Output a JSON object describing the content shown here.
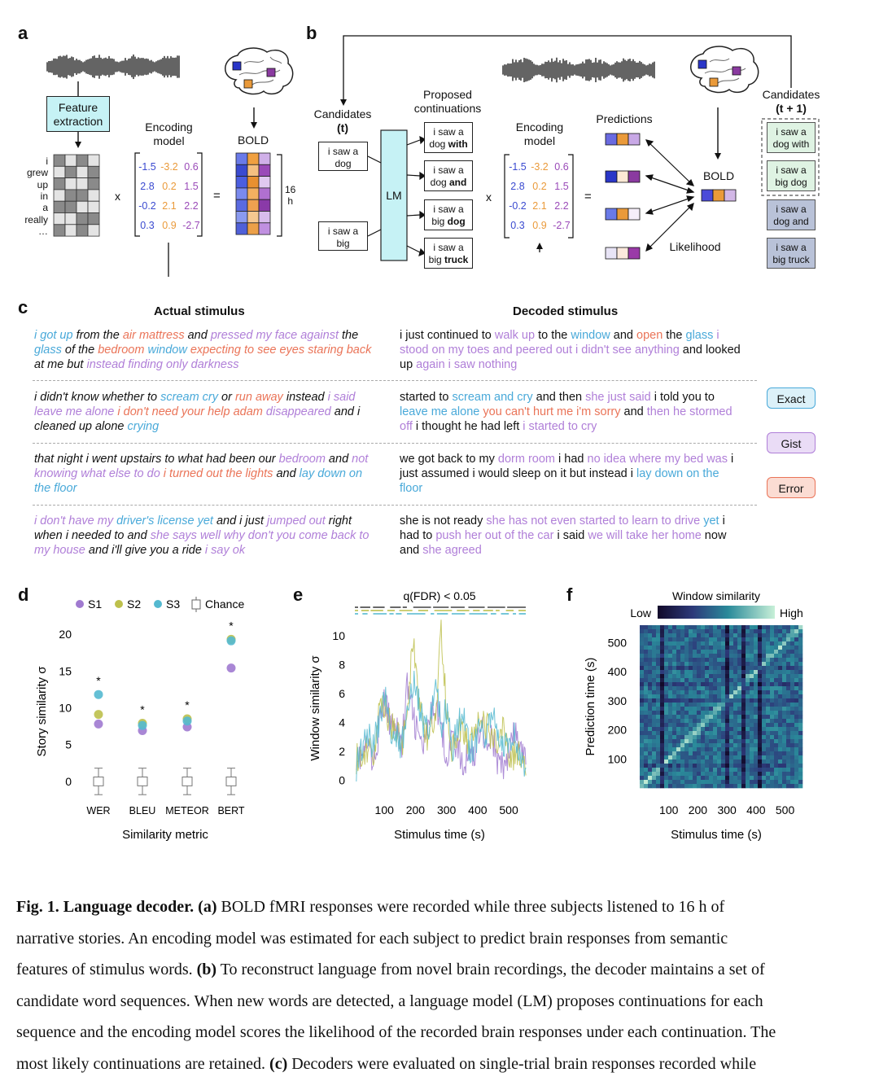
{
  "panel_labels": {
    "a": "a",
    "b": "b",
    "c": "c",
    "d": "d",
    "e": "e",
    "f": "f"
  },
  "panel_a": {
    "feature_extraction": [
      "Feature",
      "extraction"
    ],
    "encoding_model": [
      "Encoding",
      "model"
    ],
    "bold": "BOLD",
    "words": [
      "i",
      "grew",
      "up",
      "in",
      "a",
      "really",
      "…"
    ],
    "matrix": [
      [
        "-1.5",
        "-3.2",
        "0.6"
      ],
      [
        "2.8",
        "0.2",
        "1.5"
      ],
      [
        "-0.2",
        "2.1",
        "2.2"
      ],
      [
        "0.3",
        "0.9",
        "-2.7"
      ]
    ],
    "times": "x",
    "equals": "=",
    "duration": [
      "16",
      "h"
    ]
  },
  "panel_b": {
    "candidates_t": [
      "Candidates",
      "(t)"
    ],
    "candidate_boxes": [
      [
        "i saw a",
        "dog"
      ],
      [
        "i saw a",
        "big"
      ]
    ],
    "lm": "LM",
    "proposed": [
      "Proposed",
      "continuations"
    ],
    "continuations": [
      {
        "line1": "i saw a",
        "plain": "dog ",
        "bold": "with"
      },
      {
        "line1": "i saw a",
        "plain": "dog ",
        "bold": "and"
      },
      {
        "line1": "i saw a",
        "plain": "big ",
        "bold": "dog"
      },
      {
        "line1": "i saw a",
        "plain": "big ",
        "bold": "truck"
      }
    ],
    "encoding_model": [
      "Encoding",
      "model"
    ],
    "predictions": "Predictions",
    "bold": "BOLD",
    "likelihood": "Likelihood",
    "candidates_t1": [
      "Candidates",
      "(t + 1)"
    ],
    "next_candidates": [
      [
        "i saw a",
        "dog with"
      ],
      [
        "i saw a",
        "big dog"
      ],
      [
        "i saw a",
        "dog and"
      ],
      [
        "i saw a",
        "big truck"
      ]
    ]
  },
  "panel_c": {
    "actual_header": "Actual stimulus",
    "decoded_header": "Decoded stimulus",
    "legend": [
      "Exact",
      "Gist",
      "Error"
    ],
    "colors": {
      "exact": "#49a9d9",
      "gist": "#b07fd8",
      "error": "#ea7458"
    },
    "rows": [
      {
        "actual": [
          [
            "x",
            "i got up"
          ],
          [
            "n",
            " from the "
          ],
          [
            "e",
            "air mattress"
          ],
          [
            "n",
            " and "
          ],
          [
            "g",
            "pressed my face against"
          ],
          [
            "n",
            " the "
          ],
          [
            "x",
            "glass"
          ],
          [
            "n",
            " of the "
          ],
          [
            "e",
            "bedroom"
          ],
          [
            "n",
            " "
          ],
          [
            "x",
            "window"
          ],
          [
            "n",
            " "
          ],
          [
            "e",
            "expecting to see eyes staring back"
          ],
          [
            "n",
            " at me but "
          ],
          [
            "g",
            "instead finding only darkness"
          ]
        ],
        "decoded": [
          [
            "n",
            "i just continued to "
          ],
          [
            "g",
            "walk up"
          ],
          [
            "n",
            " to the "
          ],
          [
            "x",
            "window"
          ],
          [
            "n",
            " and "
          ],
          [
            "e",
            "open"
          ],
          [
            "n",
            " the "
          ],
          [
            "x",
            "glass"
          ],
          [
            "n",
            " "
          ],
          [
            "g",
            "i stood on my toes and peered out"
          ],
          [
            "n",
            " "
          ],
          [
            "g",
            "i didn't see anything"
          ],
          [
            "n",
            " and looked up "
          ],
          [
            "g",
            "again i saw nothing"
          ]
        ]
      },
      {
        "actual": [
          [
            "n",
            "i didn't know whether to "
          ],
          [
            "x",
            "scream cry"
          ],
          [
            "n",
            " or "
          ],
          [
            "e",
            "run away"
          ],
          [
            "n",
            " instead "
          ],
          [
            "g",
            "i said leave me alone"
          ],
          [
            "n",
            " "
          ],
          [
            "e",
            "i don't need your help adam"
          ],
          [
            "n",
            " "
          ],
          [
            "g",
            "disappeared"
          ],
          [
            "n",
            " and i cleaned up alone "
          ],
          [
            "x",
            "crying"
          ]
        ],
        "decoded": [
          [
            "n",
            "started to "
          ],
          [
            "x",
            "scream and cry"
          ],
          [
            "n",
            " and then "
          ],
          [
            "g",
            "she just said"
          ],
          [
            "n",
            " i told you to "
          ],
          [
            "x",
            "leave me alone"
          ],
          [
            "n",
            " "
          ],
          [
            "e",
            "you can't hurt me i'm sorry"
          ],
          [
            "n",
            " and "
          ],
          [
            "g",
            "then he stormed off"
          ],
          [
            "n",
            " i thought he had left "
          ],
          [
            "g",
            "i started to cry"
          ]
        ]
      },
      {
        "actual": [
          [
            "n",
            "that night i went upstairs to what had been our "
          ],
          [
            "g",
            "bedroom"
          ],
          [
            "n",
            " and "
          ],
          [
            "g",
            "not knowing what else to do"
          ],
          [
            "n",
            " "
          ],
          [
            "e",
            "i turned out the lights"
          ],
          [
            "n",
            " and "
          ],
          [
            "x",
            "lay down on the floor"
          ]
        ],
        "decoded": [
          [
            "n",
            "we got back to my "
          ],
          [
            "g",
            "dorm room"
          ],
          [
            "n",
            " i had "
          ],
          [
            "g",
            "no idea where my bed was"
          ],
          [
            "n",
            " i just assumed i would sleep on it but instead i "
          ],
          [
            "x",
            "lay down on the floor"
          ]
        ]
      },
      {
        "actual": [
          [
            "g",
            "i don't have my"
          ],
          [
            "n",
            " "
          ],
          [
            "x",
            "driver's license yet"
          ],
          [
            "n",
            " and i just "
          ],
          [
            "g",
            "jumped out"
          ],
          [
            "n",
            " right when i needed to and "
          ],
          [
            "g",
            "she says well why don't you come back to my house"
          ],
          [
            "n",
            " and i'll give you a ride "
          ],
          [
            "g",
            "i say ok"
          ]
        ],
        "decoded": [
          [
            "n",
            "she is not ready "
          ],
          [
            "g",
            "she has not even started to learn to drive"
          ],
          [
            "n",
            " "
          ],
          [
            "x",
            "yet"
          ],
          [
            "n",
            " i had to "
          ],
          [
            "g",
            "push her out of the car"
          ],
          [
            "n",
            " i said "
          ],
          [
            "g",
            "we will take her home"
          ],
          [
            "n",
            " now and "
          ],
          [
            "g",
            "she agreed"
          ]
        ]
      }
    ]
  },
  "panel_d": {
    "legend": [
      "S1",
      "S2",
      "S3",
      "Chance"
    ],
    "ylabel": "Story similarity σ",
    "xlabel": "Similarity metric",
    "metrics": [
      "WER",
      "BLEU",
      "METEOR",
      "BERT"
    ],
    "significance": "*"
  },
  "panel_e": {
    "title": "q(FDR) < 0.05",
    "ylabel": "Window similarity σ",
    "xlabel": "Stimulus time (s)"
  },
  "panel_f": {
    "title": "Window similarity",
    "low": "Low",
    "high": "High",
    "ylabel": "Prediction time (s)",
    "xlabel": "Stimulus time (s)"
  },
  "chart_data": [
    {
      "type": "scatter",
      "categories": [
        "WER",
        "BLEU",
        "METEOR",
        "BERT"
      ],
      "series": [
        {
          "name": "S1",
          "values": [
            7.8,
            6.9,
            7.4,
            15.4
          ]
        },
        {
          "name": "S2",
          "values": [
            9.1,
            7.9,
            8.5,
            19.3
          ]
        },
        {
          "name": "S3",
          "values": [
            11.8,
            7.6,
            8.2,
            19.1
          ]
        }
      ],
      "chance": {
        "name": "Chance",
        "box": [
          -0.6,
          0.6
        ],
        "whisker": [
          -1.8,
          1.8
        ]
      },
      "ylim": [
        -2,
        21
      ],
      "yticks": [
        0,
        5,
        10,
        15,
        20
      ],
      "colors": {
        "S1": "#a07ad0",
        "S2": "#bdc04c",
        "S3": "#54b9d0"
      }
    },
    {
      "type": "line",
      "xticks": [
        100,
        200,
        300,
        400,
        500
      ],
      "yticks": [
        0,
        2,
        4,
        6,
        8,
        10
      ],
      "xlim": [
        0,
        560
      ],
      "ylim": [
        -1,
        10.5
      ],
      "colors": [
        "#a07ad0",
        "#bdc04c",
        "#54b9d0"
      ]
    },
    {
      "type": "heatmap",
      "xticks": [
        100,
        200,
        300,
        400,
        500
      ],
      "yticks": [
        100,
        200,
        300,
        400,
        500
      ],
      "xlim": [
        0,
        560
      ],
      "ylim": [
        0,
        560
      ]
    }
  ],
  "caption": {
    "title": "Fig. 1. Language decoder.",
    "lines": [
      [
        [
          "b",
          "(a)"
        ],
        [
          "n",
          " BOLD fMRI responses were recorded while three subjects listened to 16 h of"
        ]
      ],
      [
        [
          "n",
          "narrative stories. An encoding model was estimated for each subject to predict brain responses from semantic"
        ]
      ],
      [
        [
          "n",
          "features of stimulus words. "
        ],
        [
          "b",
          "(b)"
        ],
        [
          "n",
          " To reconstruct language from novel brain recordings, the decoder maintains a set of"
        ]
      ],
      [
        [
          "n",
          "candidate word sequences. When new words are detected, a language model (LM) proposes continuations for each"
        ]
      ],
      [
        [
          "n",
          "sequence and the encoding model scores the likelihood of the recorded brain responses under each continuation. The"
        ]
      ],
      [
        [
          "n",
          "most likely continuations are retained. "
        ],
        [
          "b",
          "(c)"
        ],
        [
          "n",
          " Decoders were evaluated on single-trial brain responses recorded while"
        ]
      ]
    ]
  }
}
